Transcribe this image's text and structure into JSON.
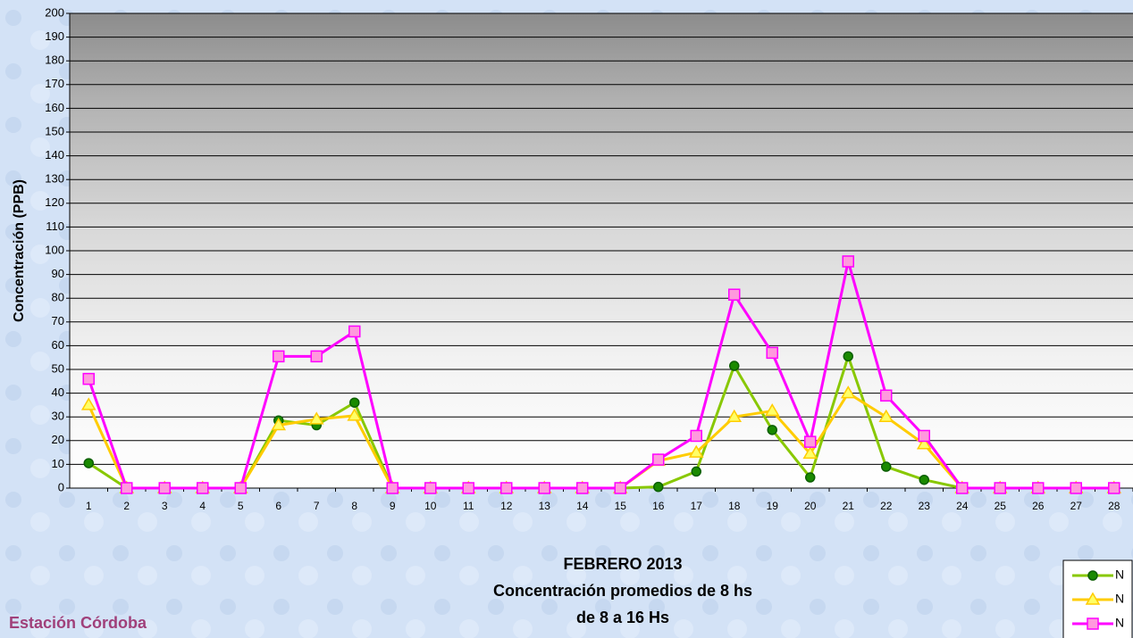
{
  "chart_data": {
    "type": "line",
    "title": "FEBRERO 2013",
    "subtitle": "Concentración promedios de 8 hs",
    "subtitle2": "de 8 a 16 Hs",
    "station": "Estación Córdoba",
    "y_label": "Concentración (PPB)",
    "categories": [
      "1",
      "2",
      "3",
      "4",
      "5",
      "6",
      "7",
      "8",
      "9",
      "10",
      "11",
      "12",
      "13",
      "14",
      "15",
      "16",
      "17",
      "18",
      "19",
      "20",
      "21",
      "22",
      "23",
      "24",
      "25",
      "26",
      "27",
      "28"
    ],
    "series": [
      {
        "name": "N",
        "color": "#88c800",
        "marker": "circle",
        "marker_color": "#1a8a00",
        "values": [
          10.5,
          0,
          0,
          0,
          0,
          28.5,
          26.5,
          36,
          0,
          0,
          0,
          0,
          0,
          0,
          0,
          0.5,
          7,
          51.5,
          24.5,
          4.5,
          55.5,
          9,
          3.5,
          0,
          0,
          0,
          0,
          0
        ]
      },
      {
        "name": "N",
        "color": "#ffcc00",
        "marker": "triangle",
        "marker_color": "#ffff66",
        "values": [
          35,
          0,
          0,
          0,
          0,
          26.5,
          29,
          30.5,
          0,
          0,
          0,
          0,
          0,
          0,
          0,
          11.5,
          15,
          30,
          32.5,
          14.5,
          40,
          30,
          18.5,
          0,
          0,
          0,
          0,
          0
        ]
      },
      {
        "name": "N",
        "color": "#ff00ff",
        "marker": "square",
        "marker_color": "#ff99dd",
        "values": [
          46,
          0,
          0,
          0,
          0,
          55.5,
          55.5,
          66,
          0,
          0,
          0,
          0,
          0,
          0,
          0,
          12,
          22,
          81.5,
          57,
          19.5,
          95.5,
          39,
          22,
          0,
          0,
          0,
          0,
          0
        ]
      }
    ],
    "ylim": [
      0,
      200
    ],
    "yticks": [
      0,
      10,
      20,
      30,
      40,
      50,
      60,
      70,
      80,
      90,
      100,
      110,
      120,
      130,
      140,
      150,
      160,
      170,
      180,
      190,
      200
    ],
    "grid": true,
    "legend": "bottom-right"
  }
}
